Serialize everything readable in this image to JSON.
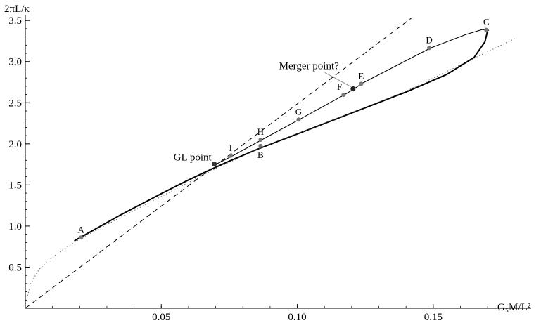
{
  "chart_data": {
    "type": "line",
    "title": "",
    "xlabel": "G₅M/L²",
    "ylabel": "2πL/κ",
    "xlim": [
      0,
      0.186
    ],
    "ylim": [
      0,
      3.57
    ],
    "x_ticks": [
      {
        "value": 0.05,
        "label": "0.05"
      },
      {
        "value": 0.1,
        "label": "0.10"
      },
      {
        "value": 0.15,
        "label": "0.15"
      }
    ],
    "y_ticks": [
      {
        "value": 0.5,
        "label": "0.5"
      },
      {
        "value": 1.0,
        "label": "1.0"
      },
      {
        "value": 1.5,
        "label": "1.5"
      },
      {
        "value": 2.0,
        "label": "2.0"
      },
      {
        "value": 2.5,
        "label": "2.5"
      },
      {
        "value": 3.0,
        "label": "3.0"
      },
      {
        "value": 3.5,
        "label": "3.5"
      }
    ],
    "grid": false,
    "series": [
      {
        "style": "thick-solid",
        "x": [
          0.018,
          0.035,
          0.05,
          0.06,
          0.068,
          0.075,
          0.085,
          0.1,
          0.12,
          0.14,
          0.155,
          0.165,
          0.169,
          0.17
        ],
        "y": [
          0.82,
          1.135,
          1.395,
          1.56,
          1.685,
          1.79,
          1.93,
          2.12,
          2.375,
          2.63,
          2.845,
          3.05,
          3.24,
          3.38
        ]
      },
      {
        "style": "thin-solid",
        "x": [
          0.07,
          0.076,
          0.087,
          0.101,
          0.117,
          0.121,
          0.1235,
          0.149,
          0.162,
          0.168,
          0.1705
        ],
        "y": [
          1.75,
          1.85,
          2.05,
          2.3,
          2.59,
          2.67,
          2.73,
          3.165,
          3.33,
          3.39,
          3.38
        ]
      },
      {
        "style": "dashed",
        "x": [
          0,
          0.142
        ],
        "y": [
          0,
          3.53
        ]
      },
      {
        "style": "dotted",
        "x": [
          0,
          0.002,
          0.005,
          0.01,
          0.015,
          0.02,
          0.03,
          0.04,
          0.05,
          0.06,
          0.07,
          0.087,
          0.1,
          0.12,
          0.14,
          0.16,
          0.18
        ],
        "y": [
          0.05,
          0.3,
          0.47,
          0.62,
          0.74,
          0.84,
          1.02,
          1.19,
          1.36,
          1.53,
          1.7,
          1.96,
          2.12,
          2.38,
          2.64,
          2.96,
          3.28
        ]
      }
    ],
    "points": [
      {
        "label": "A",
        "x": 0.0205,
        "y": 0.86,
        "label_pos": "above"
      },
      {
        "label": "B",
        "x": 0.0865,
        "y": 1.975,
        "label_pos": "below"
      },
      {
        "label": "C",
        "x": 0.1695,
        "y": 3.385,
        "label_pos": "above"
      },
      {
        "label": "D",
        "x": 0.1485,
        "y": 3.165,
        "label_pos": "above"
      },
      {
        "label": "E",
        "x": 0.1235,
        "y": 2.73,
        "label_pos": "above"
      },
      {
        "label": "F",
        "x": 0.117,
        "y": 2.595,
        "label_pos": "above-left"
      },
      {
        "label": "G",
        "x": 0.1005,
        "y": 2.295,
        "label_pos": "above"
      },
      {
        "label": "H",
        "x": 0.0865,
        "y": 2.05,
        "label_pos": "above"
      },
      {
        "label": "I",
        "x": 0.0755,
        "y": 1.855,
        "label_pos": "above"
      }
    ],
    "special_points": [
      {
        "label": "GL point",
        "x": 0.0695,
        "y": 1.755
      },
      {
        "label": "Merger point?",
        "x": 0.1205,
        "y": 2.67
      }
    ]
  }
}
